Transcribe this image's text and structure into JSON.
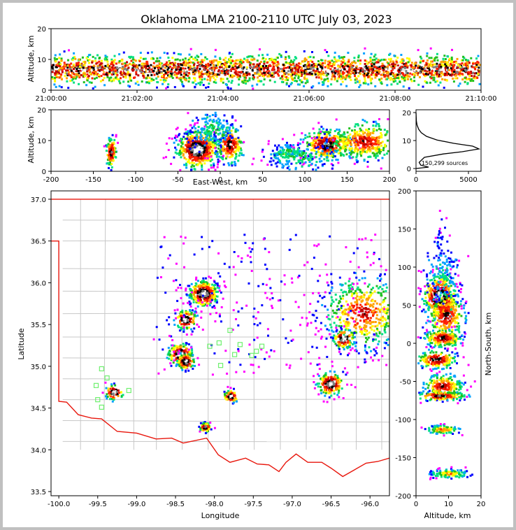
{
  "chart_data": [
    {
      "type": "scatter",
      "title": "Oklahoma LMA 2100-2110 UTC July 03, 2023",
      "panel": "altitude-time",
      "xlabel": "",
      "ylabel": "Altitude, km",
      "x_ticks": [
        "21:00:00",
        "21:02:00",
        "21:04:00",
        "21:06:00",
        "21:08:00",
        "21:10:00"
      ],
      "y_ticks": [
        0,
        10,
        20
      ],
      "xlim_min": [
        0,
        10
      ],
      "ylim": [
        0,
        20
      ],
      "density_band_altitude_km": [
        2,
        13
      ],
      "density_peak_altitude_km": 7
    },
    {
      "type": "scatter",
      "panel": "altitude-east-west",
      "xlabel": "East-West, km",
      "ylabel": "Altitude, km",
      "x_ticks": [
        -200,
        -150,
        -100,
        -50,
        0,
        50,
        100,
        150,
        200
      ],
      "y_ticks": [
        0,
        10,
        20
      ],
      "xlim": [
        -200,
        200
      ],
      "ylim": [
        0,
        20
      ]
    },
    {
      "type": "line",
      "panel": "altitude-histogram",
      "annotation": "150,299 sources",
      "x_ticks": [
        0,
        5000
      ],
      "y_ticks": [
        0,
        10,
        20
      ],
      "xlim": [
        0,
        6200
      ],
      "ylim": [
        -1,
        21
      ],
      "x": [
        0,
        1200,
        450,
        300,
        800,
        2600,
        4400,
        6000,
        5400,
        3600,
        2000,
        1000,
        500,
        260,
        100,
        30,
        0
      ],
      "y": [
        0,
        0.5,
        1.2,
        2.2,
        4,
        5.2,
        6,
        7,
        8,
        9,
        10.2,
        11.5,
        12.8,
        14,
        15.5,
        17,
        20
      ]
    },
    {
      "type": "scatter",
      "panel": "plan-view",
      "xlabel": "Longitude",
      "ylabel": "Latitude",
      "x_ticks": [
        "-100.0",
        "-99.5",
        "-99.0",
        "-98.5",
        "-98.0",
        "-97.5",
        "-97.0",
        "-96.5",
        "-96.0"
      ],
      "y_ticks": [
        "33.5",
        "34.0",
        "34.5",
        "35.0",
        "35.5",
        "36.0",
        "36.5",
        "37.0"
      ],
      "xlim": [
        -100.1,
        -95.75
      ],
      "ylim": [
        33.45,
        37.1
      ],
      "storm_cells": [
        {
          "lon": -98.15,
          "lat": 35.88
        },
        {
          "lon": -98.38,
          "lat": 35.57
        },
        {
          "lon": -98.45,
          "lat": 35.15
        },
        {
          "lon": -98.38,
          "lat": 35.07
        },
        {
          "lon": -96.52,
          "lat": 34.8
        },
        {
          "lon": -97.8,
          "lat": 34.65
        },
        {
          "lon": -96.1,
          "lat": 35.65
        },
        {
          "lon": -96.35,
          "lat": 35.34
        },
        {
          "lon": -99.3,
          "lat": 34.7
        },
        {
          "lon": -98.13,
          "lat": 34.28
        }
      ],
      "stations": [
        {
          "lon": -99.45,
          "lat": 34.97
        },
        {
          "lon": -99.38,
          "lat": 34.86
        },
        {
          "lon": -99.52,
          "lat": 34.77
        },
        {
          "lon": -99.5,
          "lat": 34.6
        },
        {
          "lon": -99.45,
          "lat": 34.51
        },
        {
          "lon": -99.1,
          "lat": 34.71
        },
        {
          "lon": -98.06,
          "lat": 35.24
        },
        {
          "lon": -97.94,
          "lat": 35.28
        },
        {
          "lon": -97.8,
          "lat": 35.43
        },
        {
          "lon": -97.67,
          "lat": 35.26
        },
        {
          "lon": -97.74,
          "lat": 35.14
        },
        {
          "lon": -97.52,
          "lat": 35.13
        },
        {
          "lon": -97.46,
          "lat": 35.18
        },
        {
          "lon": -97.39,
          "lat": 35.24
        },
        {
          "lon": -97.92,
          "lat": 35.01
        }
      ],
      "colors": {
        "state_border": "#e8160c",
        "county_lines": "#c8c8c8",
        "stations": "#6ef06e"
      }
    },
    {
      "type": "scatter",
      "panel": "north-south-altitude",
      "xlabel": "Altitude, km",
      "ylabel": "North-South, km",
      "x_ticks": [
        0,
        10,
        20
      ],
      "y_ticks": [
        200,
        150,
        100,
        50,
        0,
        -50,
        -100,
        -150,
        -200
      ],
      "xlim": [
        0,
        20
      ],
      "ylim": [
        -200,
        200
      ]
    }
  ],
  "colormap": [
    "#ff00ff",
    "#0000ff",
    "#00a0ff",
    "#00e080",
    "#20c020",
    "#ffff00",
    "#ffa000",
    "#ff2000",
    "#c00000",
    "#000000",
    "#808080",
    "#ffffff"
  ]
}
